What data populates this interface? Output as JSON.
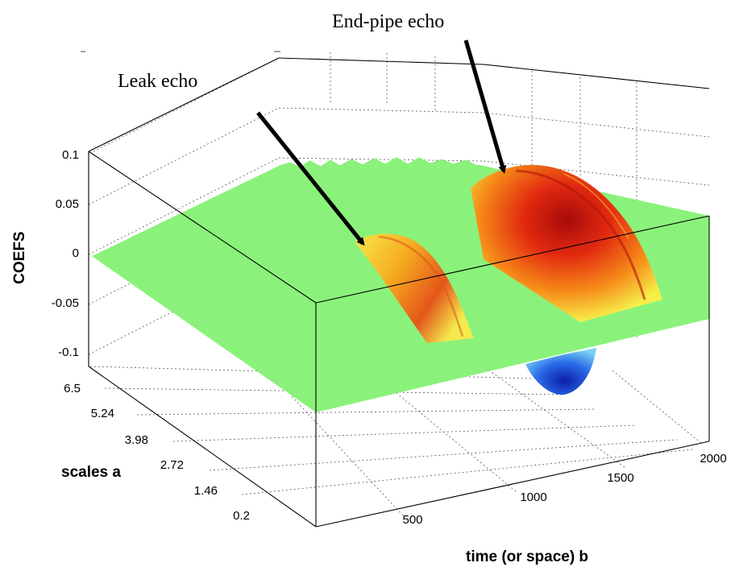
{
  "chart_data": {
    "type": "surface",
    "zlabel": "COEFS",
    "ylabel": "scales a",
    "xlabel": "time (or space) b",
    "z_ticks": [
      "0.1",
      "0.05",
      "0",
      "-0.05",
      "-0.1"
    ],
    "y_ticks": [
      "6.5",
      "5.24",
      "3.98",
      "2.72",
      "1.46",
      "0.2"
    ],
    "x_ticks": [
      "500",
      "1000",
      "1500",
      "2000"
    ],
    "zlim": [
      -0.1,
      0.1
    ],
    "ylim": [
      0.2,
      6.5
    ],
    "xlim": [
      0,
      2000
    ],
    "features": [
      {
        "name": "leak",
        "x_center": 880,
        "peak_coef": 0.06
      },
      {
        "name": "end_pipe",
        "x_center": 1500,
        "peak_coef": 0.1,
        "trough_coef": -0.08
      }
    ],
    "colormap": "jet",
    "grid": true,
    "annotations": [
      "Leak echo",
      "End-pipe echo"
    ]
  }
}
